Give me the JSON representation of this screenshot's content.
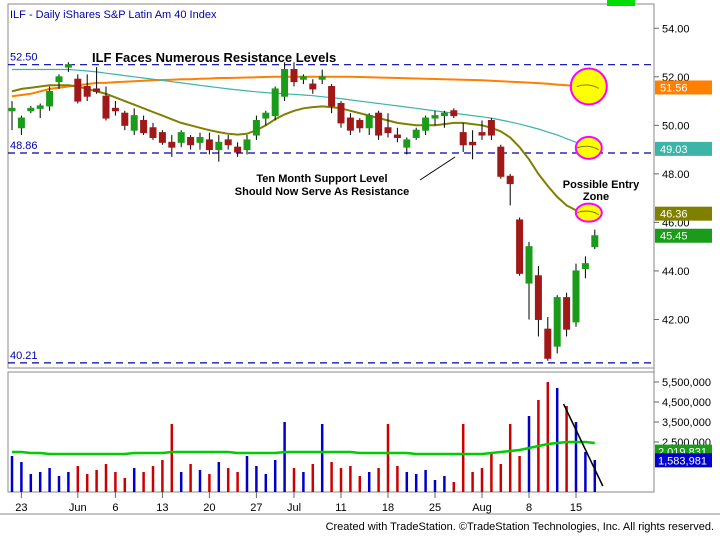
{
  "chart_header": "ILF - Daily  iShares S&P Latin Am 40 Index",
  "footer": "Created with TradeStation. ©TradeStation Technologies, Inc. All rights reserved.",
  "colors": {
    "up": "#1a9c1a",
    "down": "#a01818",
    "ma_long": "#ff8000",
    "ma_mid": "#3cb4a8",
    "ma_short": "#808000",
    "level_line": "#0000aa",
    "highlight": "#ff00ff",
    "vol_ma": "#00cc00"
  },
  "chart_data": {
    "type": "candlestick",
    "title": "ILF Faces Numerous Resistance Levels",
    "price_axis": {
      "ticks": [
        42.0,
        44.0,
        46.0,
        48.0,
        50.0,
        52.0,
        54.0
      ],
      "range": [
        40.0,
        55.0
      ]
    },
    "volume_axis": {
      "ticks": [
        "2,500,000",
        "3,500,000",
        "4,500,000",
        "5,500,000"
      ],
      "range": [
        0,
        6000000
      ]
    },
    "x_labels": [
      "23",
      "Jun",
      "6",
      "13",
      "20",
      "27",
      "Jul",
      "11",
      "18",
      "25",
      "Aug",
      "8",
      "15"
    ],
    "x_label_bars": [
      1,
      7,
      11,
      16,
      21,
      26,
      30,
      35,
      40,
      45,
      50,
      55,
      60
    ],
    "levels": [
      {
        "label": "52.50",
        "value": 52.5
      },
      {
        "label": "48.86",
        "value": 48.86
      },
      {
        "label": "40.21",
        "value": 40.21
      }
    ],
    "price_tags": [
      {
        "label": "51.56",
        "value": 51.56,
        "color": "#ff8000"
      },
      {
        "label": "49.03",
        "value": 49.03,
        "color": "#3cb4a8"
      },
      {
        "label": "46.36",
        "value": 46.36,
        "color": "#808000"
      },
      {
        "label": "45.45",
        "value": 45.45,
        "color": "#1a9c1a"
      }
    ],
    "volume_tags": [
      {
        "label": "2,019,831",
        "value": 2019831,
        "color": "#1a9c1a"
      },
      {
        "label": "1,583,981",
        "value": 1583981,
        "color": "#0000cc"
      }
    ],
    "annotations": {
      "support": "Ten Month Support Level\nShould Now Serve As Resistance",
      "entry": "Possible Entry\nZone"
    },
    "bars": [
      {
        "o": 50.6,
        "h": 51.0,
        "l": 49.8,
        "c": 50.7
      },
      {
        "o": 49.9,
        "h": 50.4,
        "l": 49.6,
        "c": 50.3
      },
      {
        "o": 50.6,
        "h": 50.8,
        "l": 50.5,
        "c": 50.7
      },
      {
        "o": 50.7,
        "h": 50.9,
        "l": 50.3,
        "c": 50.8
      },
      {
        "o": 50.8,
        "h": 51.6,
        "l": 50.6,
        "c": 51.4
      },
      {
        "o": 51.8,
        "h": 52.1,
        "l": 51.5,
        "c": 52.0
      },
      {
        "o": 52.4,
        "h": 52.6,
        "l": 52.2,
        "c": 52.5
      },
      {
        "o": 51.9,
        "h": 52.1,
        "l": 50.9,
        "c": 51.0
      },
      {
        "o": 51.6,
        "h": 52.1,
        "l": 51.0,
        "c": 51.2
      },
      {
        "o": 51.5,
        "h": 52.4,
        "l": 51.3,
        "c": 51.4
      },
      {
        "o": 51.2,
        "h": 51.6,
        "l": 50.2,
        "c": 50.3
      },
      {
        "o": 50.7,
        "h": 51.0,
        "l": 50.4,
        "c": 50.6
      },
      {
        "o": 50.5,
        "h": 50.6,
        "l": 49.8,
        "c": 50.0
      },
      {
        "o": 49.8,
        "h": 50.7,
        "l": 49.6,
        "c": 50.4
      },
      {
        "o": 50.2,
        "h": 50.4,
        "l": 49.6,
        "c": 49.7
      },
      {
        "o": 49.9,
        "h": 50.1,
        "l": 49.4,
        "c": 49.5
      },
      {
        "o": 49.7,
        "h": 49.8,
        "l": 49.2,
        "c": 49.3
      },
      {
        "o": 49.3,
        "h": 49.6,
        "l": 48.7,
        "c": 49.1
      },
      {
        "o": 49.3,
        "h": 49.8,
        "l": 49.1,
        "c": 49.7
      },
      {
        "o": 49.5,
        "h": 49.6,
        "l": 49.0,
        "c": 49.2
      },
      {
        "o": 49.3,
        "h": 49.7,
        "l": 49.0,
        "c": 49.5
      },
      {
        "o": 49.4,
        "h": 49.7,
        "l": 48.8,
        "c": 49.0
      },
      {
        "o": 49.0,
        "h": 49.6,
        "l": 48.5,
        "c": 49.3
      },
      {
        "o": 49.4,
        "h": 49.6,
        "l": 49.0,
        "c": 49.2
      },
      {
        "o": 49.1,
        "h": 49.3,
        "l": 48.7,
        "c": 48.9
      },
      {
        "o": 49.0,
        "h": 49.6,
        "l": 48.8,
        "c": 49.4
      },
      {
        "o": 49.6,
        "h": 50.4,
        "l": 49.4,
        "c": 50.2
      },
      {
        "o": 50.3,
        "h": 50.6,
        "l": 50.0,
        "c": 50.5
      },
      {
        "o": 50.4,
        "h": 51.6,
        "l": 50.2,
        "c": 51.5
      },
      {
        "o": 51.2,
        "h": 52.6,
        "l": 51.0,
        "c": 52.3
      },
      {
        "o": 52.3,
        "h": 52.6,
        "l": 51.6,
        "c": 51.8
      },
      {
        "o": 51.9,
        "h": 52.1,
        "l": 51.7,
        "c": 52.0
      },
      {
        "o": 51.7,
        "h": 51.9,
        "l": 51.3,
        "c": 51.5
      },
      {
        "o": 51.9,
        "h": 52.3,
        "l": 51.7,
        "c": 52.0
      },
      {
        "o": 51.6,
        "h": 51.7,
        "l": 50.5,
        "c": 50.8
      },
      {
        "o": 50.9,
        "h": 51.0,
        "l": 49.9,
        "c": 50.1
      },
      {
        "o": 50.3,
        "h": 50.5,
        "l": 49.6,
        "c": 49.8
      },
      {
        "o": 50.2,
        "h": 50.3,
        "l": 49.7,
        "c": 49.9
      },
      {
        "o": 49.9,
        "h": 50.5,
        "l": 49.6,
        "c": 50.4
      },
      {
        "o": 50.5,
        "h": 50.6,
        "l": 49.4,
        "c": 49.6
      },
      {
        "o": 49.9,
        "h": 50.5,
        "l": 49.5,
        "c": 49.7
      },
      {
        "o": 49.6,
        "h": 49.9,
        "l": 49.3,
        "c": 49.5
      },
      {
        "o": 49.1,
        "h": 49.5,
        "l": 48.8,
        "c": 49.4
      },
      {
        "o": 49.5,
        "h": 49.9,
        "l": 49.4,
        "c": 49.8
      },
      {
        "o": 49.8,
        "h": 50.4,
        "l": 49.6,
        "c": 50.3
      },
      {
        "o": 50.3,
        "h": 50.6,
        "l": 50.0,
        "c": 50.4
      },
      {
        "o": 50.4,
        "h": 50.6,
        "l": 49.9,
        "c": 50.5
      },
      {
        "o": 50.6,
        "h": 50.7,
        "l": 50.3,
        "c": 50.4
      },
      {
        "o": 49.7,
        "h": 50.1,
        "l": 48.9,
        "c": 49.2
      },
      {
        "o": 49.3,
        "h": 49.8,
        "l": 48.6,
        "c": 49.2
      },
      {
        "o": 49.7,
        "h": 50.2,
        "l": 49.4,
        "c": 49.6
      },
      {
        "o": 50.2,
        "h": 50.3,
        "l": 49.4,
        "c": 49.6
      },
      {
        "o": 49.1,
        "h": 49.2,
        "l": 47.8,
        "c": 47.9
      },
      {
        "o": 47.9,
        "h": 48.0,
        "l": 46.7,
        "c": 47.6
      },
      {
        "o": 46.1,
        "h": 46.2,
        "l": 43.8,
        "c": 43.9
      },
      {
        "o": 43.5,
        "h": 45.2,
        "l": 42.0,
        "c": 45.0
      },
      {
        "o": 43.8,
        "h": 44.2,
        "l": 41.3,
        "c": 42.0
      },
      {
        "o": 41.6,
        "h": 42.1,
        "l": 40.3,
        "c": 40.4
      },
      {
        "o": 40.9,
        "h": 43.0,
        "l": 40.6,
        "c": 42.9
      },
      {
        "o": 42.9,
        "h": 43.1,
        "l": 41.3,
        "c": 41.6
      },
      {
        "o": 41.9,
        "h": 44.3,
        "l": 41.7,
        "c": 44.0
      },
      {
        "o": 44.1,
        "h": 44.6,
        "l": 43.7,
        "c": 44.3
      },
      {
        "o": 45.0,
        "h": 45.7,
        "l": 44.9,
        "c": 45.45
      }
    ],
    "volumes": [
      1.8,
      1.5,
      0.9,
      1.0,
      1.2,
      0.8,
      1.0,
      1.3,
      0.9,
      1.1,
      1.4,
      1.0,
      0.7,
      1.2,
      1.0,
      1.3,
      1.6,
      3.4,
      1.0,
      1.4,
      1.1,
      0.9,
      1.5,
      1.2,
      1.0,
      1.8,
      1.3,
      0.9,
      1.6,
      3.5,
      1.2,
      1.0,
      1.4,
      3.4,
      1.5,
      1.2,
      1.3,
      0.8,
      1.0,
      1.2,
      3.4,
      1.3,
      1.0,
      0.9,
      1.1,
      0.6,
      0.8,
      0.5,
      3.4,
      1.0,
      1.2,
      1.9,
      1.4,
      3.4,
      1.8,
      3.8,
      4.6,
      5.5,
      5.2,
      4.3,
      3.5,
      2.0,
      1.6
    ],
    "ma_long": [
      51.2,
      51.25,
      51.3,
      51.4,
      51.5,
      51.55,
      51.6,
      51.65,
      51.7,
      51.75,
      51.75,
      51.78,
      51.8,
      51.82,
      51.84,
      51.86,
      51.87,
      51.88,
      51.9,
      51.9,
      51.92,
      51.93,
      51.95,
      51.95,
      51.96,
      51.97,
      51.98,
      51.99,
      52.0,
      52.0,
      52.0,
      52.0,
      52.0,
      52.0,
      52.0,
      52.0,
      52.0,
      51.99,
      51.98,
      51.97,
      51.96,
      51.95,
      51.94,
      51.93,
      51.92,
      51.91,
      51.9,
      51.89,
      51.88,
      51.87,
      51.86,
      51.84,
      51.82,
      51.8,
      51.78,
      51.76,
      51.74,
      51.71,
      51.68,
      51.65,
      51.62,
      51.59,
      51.56
    ],
    "ma_mid": [
      52.3,
      52.3,
      52.3,
      52.3,
      52.3,
      52.3,
      52.3,
      52.27,
      52.24,
      52.2,
      52.15,
      52.1,
      52.05,
      52.0,
      51.95,
      51.9,
      51.85,
      51.8,
      51.75,
      51.7,
      51.65,
      51.6,
      51.55,
      51.5,
      51.46,
      51.42,
      51.38,
      51.35,
      51.32,
      51.3,
      51.28,
      51.25,
      51.22,
      51.18,
      51.14,
      51.1,
      51.05,
      51.0,
      50.95,
      50.9,
      50.85,
      50.8,
      50.75,
      50.7,
      50.65,
      50.6,
      50.55,
      50.5,
      50.45,
      50.4,
      50.35,
      50.3,
      50.22,
      50.14,
      50.05,
      49.95,
      49.85,
      49.72,
      49.6,
      49.45,
      49.3,
      49.15,
      49.03
    ],
    "ma_short": [
      51.4,
      51.5,
      51.55,
      51.6,
      51.65,
      51.65,
      51.65,
      51.6,
      51.5,
      51.4,
      51.3,
      51.15,
      51.0,
      50.85,
      50.7,
      50.55,
      50.4,
      50.25,
      50.1,
      50.0,
      49.9,
      49.8,
      49.72,
      49.65,
      49.62,
      49.65,
      49.8,
      50.0,
      50.25,
      50.45,
      50.6,
      50.7,
      50.75,
      50.78,
      50.75,
      50.7,
      50.6,
      50.5,
      50.4,
      50.3,
      50.2,
      50.1,
      50.05,
      50.0,
      50.0,
      50.0,
      50.05,
      50.1,
      50.1,
      50.05,
      50.0,
      49.9,
      49.75,
      49.5,
      49.1,
      48.6,
      48.0,
      47.5,
      47.05,
      46.7,
      46.5,
      46.4,
      46.36
    ],
    "vol_ma": [
      2.0,
      2.0,
      1.95,
      1.95,
      1.9,
      1.9,
      1.9,
      1.9,
      1.9,
      1.9,
      1.9,
      1.9,
      1.9,
      1.95,
      1.95,
      1.95,
      1.95,
      2.0,
      2.0,
      2.0,
      2.0,
      2.0,
      2.0,
      2.0,
      1.95,
      1.95,
      1.95,
      1.95,
      1.95,
      2.0,
      2.0,
      2.0,
      2.0,
      2.0,
      2.0,
      2.0,
      2.0,
      1.95,
      1.95,
      1.95,
      1.95,
      1.95,
      1.95,
      1.9,
      1.9,
      1.9,
      1.9,
      1.9,
      1.9,
      1.9,
      1.9,
      1.95,
      2.0,
      2.05,
      2.1,
      2.2,
      2.3,
      2.4,
      2.45,
      2.5,
      2.5,
      2.5,
      2.45
    ]
  }
}
